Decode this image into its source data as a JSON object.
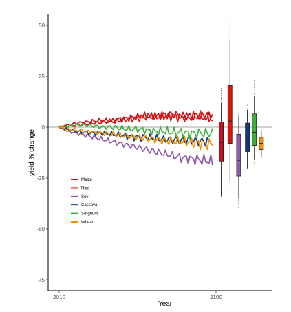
{
  "chart_data": {
    "type": "line",
    "title": "",
    "xlabel": "Year",
    "ylabel": "yield % change",
    "ylim": [
      -80,
      55
    ],
    "xlim": [
      2005,
      2124
    ],
    "x_ticks": [
      {
        "value": 2010,
        "label": "2010"
      },
      {
        "value": 2100,
        "label": "2100"
      }
    ],
    "y_ticks": [
      {
        "value": 50,
        "label": "50"
      },
      {
        "value": 25,
        "label": "25"
      },
      {
        "value": 0,
        "label": "0"
      },
      {
        "value": -25,
        "label": "-25"
      },
      {
        "value": -50,
        "label": "-50"
      },
      {
        "value": -75,
        "label": "-75"
      }
    ],
    "reference_line": 0,
    "reference_color": "#a6a6a6",
    "grid": false,
    "legend_position": "bottom-left",
    "series": [
      {
        "name": "Maize",
        "color": "#c1121f",
        "x": [
          2010,
          2015,
          2020,
          2025,
          2030,
          2035,
          2040,
          2045,
          2050,
          2055,
          2060,
          2065,
          2070,
          2075,
          2080,
          2085,
          2090,
          2095,
          2098
        ],
        "y": [
          0,
          1,
          2,
          2.5,
          3,
          3.5,
          3,
          4,
          4.5,
          5,
          5.5,
          5,
          6,
          6.5,
          5.5,
          5,
          5.5,
          5,
          4.5
        ],
        "box": {
          "x": 2103,
          "whisker_low": -34,
          "q1": -17,
          "median": -7.5,
          "q3": 2.5,
          "whisker_high": 12,
          "outlier_low": -35,
          "outlier_high": 20
        }
      },
      {
        "name": "Rice",
        "color": "#e3120b",
        "x": [
          2010,
          2015,
          2020,
          2025,
          2030,
          2035,
          2040,
          2045,
          2050,
          2055,
          2060,
          2065,
          2070,
          2075,
          2080,
          2085,
          2090,
          2095,
          2098
        ],
        "y": [
          0,
          0.5,
          1,
          1.5,
          2,
          2.5,
          3,
          3.5,
          4,
          4.5,
          5,
          5,
          5.5,
          5.5,
          5,
          5,
          5.5,
          5,
          5
        ],
        "box": {
          "x": 2108,
          "whisker_low": -27,
          "q1": -8,
          "median": 3,
          "q3": 20.5,
          "whisker_high": 42.5,
          "outlier_low": -30,
          "outlier_high": 53
        }
      },
      {
        "name": "Soy",
        "color": "#8f5aa8",
        "x": [
          2010,
          2015,
          2020,
          2025,
          2030,
          2035,
          2040,
          2045,
          2050,
          2055,
          2060,
          2065,
          2070,
          2075,
          2080,
          2085,
          2090,
          2095,
          2098
        ],
        "y": [
          0,
          -2,
          -3,
          -4,
          -5,
          -6,
          -7,
          -8,
          -9,
          -10,
          -11,
          -12,
          -13,
          -14,
          -15,
          -15.5,
          -16,
          -16.5,
          -17
        ],
        "box": {
          "x": 2113,
          "whisker_low": -35,
          "q1": -24,
          "median": -16.5,
          "q3": -3.5,
          "whisker_high": 5.5,
          "outlier_low": -40,
          "outlier_high": 9
        }
      },
      {
        "name": "Cassava",
        "color": "#0b3c7e",
        "x": [
          2010,
          2015,
          2020,
          2025,
          2030,
          2035,
          2040,
          2045,
          2050,
          2055,
          2060,
          2065,
          2070,
          2075,
          2080,
          2085,
          2090,
          2095,
          2098
        ],
        "y": [
          0,
          -1,
          -2,
          -2.5,
          -3,
          -3,
          -3.5,
          -4,
          -4.5,
          -5,
          -5,
          -5.5,
          -6,
          -6,
          -6.5,
          -6.5,
          -7,
          -7,
          -7
        ],
        "box": {
          "x": 2118,
          "whisker_low": -20,
          "q1": -12,
          "median": -7,
          "q3": 2,
          "whisker_high": 8.5,
          "outlier_low": -21,
          "outlier_high": 11
        }
      },
      {
        "name": "Sorghum",
        "color": "#3fae3f",
        "x": [
          2010,
          2015,
          2020,
          2025,
          2030,
          2035,
          2040,
          2045,
          2050,
          2055,
          2060,
          2065,
          2070,
          2075,
          2080,
          2085,
          2090,
          2095,
          2098
        ],
        "y": [
          0,
          0.5,
          1,
          1,
          0.5,
          0,
          0,
          -0.5,
          -1,
          -1,
          -1.5,
          -2,
          -2,
          -2.5,
          -2.5,
          -3,
          -3,
          -3,
          -3
        ],
        "box": {
          "x": 2122,
          "whisker_low": -16,
          "q1": -9,
          "median": -2.5,
          "q3": 6.5,
          "whisker_high": 15.5,
          "outlier_low": -18,
          "outlier_high": 23
        }
      },
      {
        "name": "Wheat",
        "color": "#f39200",
        "x": [
          2010,
          2015,
          2020,
          2025,
          2030,
          2035,
          2040,
          2045,
          2050,
          2055,
          2060,
          2065,
          2070,
          2075,
          2080,
          2085,
          2090,
          2095,
          2098
        ],
        "y": [
          0,
          -1,
          -1.5,
          -2,
          -2.5,
          -3,
          -3.5,
          -4,
          -4.5,
          -5,
          -5.5,
          -6,
          -6.5,
          -7,
          -7,
          -7.5,
          -8,
          -8,
          -8.5
        ],
        "box": {
          "x": 2126,
          "whisker_low": -15,
          "q1": -11,
          "median": -8,
          "q3": -5,
          "whisker_high": -2,
          "outlier_low": -15.5,
          "outlier_high": -1
        }
      }
    ]
  }
}
